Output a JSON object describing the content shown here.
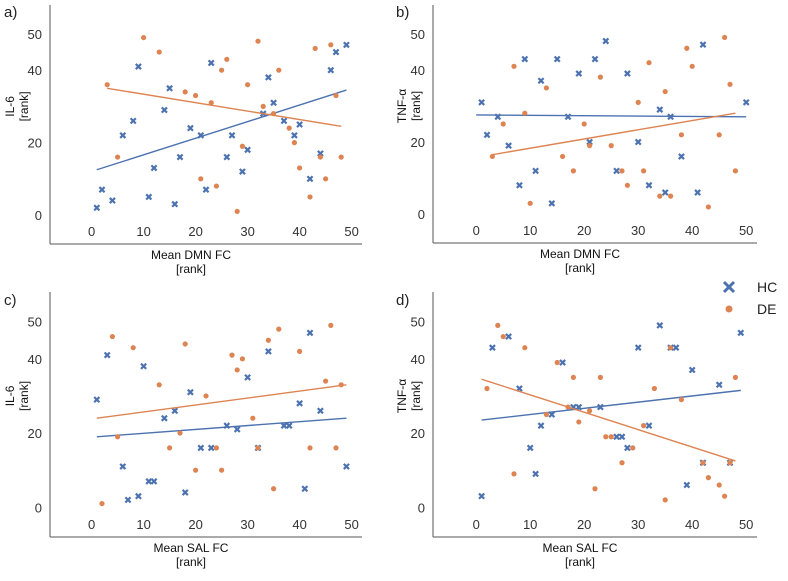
{
  "colors": {
    "HC": "#4c72b0",
    "DE": "#dd8452"
  },
  "legend": {
    "entries": [
      {
        "key": "HC",
        "label": "HC",
        "marker": "x"
      },
      {
        "key": "DE",
        "label": "DE",
        "marker": "o"
      }
    ]
  },
  "chart_data": [
    {
      "type": "scatter",
      "panel": "a)",
      "xlabel": [
        "Mean DMN FC",
        "[rank]"
      ],
      "ylabel": [
        "IL-6",
        "[rank]"
      ],
      "xlim": [
        -8,
        52
      ],
      "ylim": [
        -8,
        58
      ],
      "xticks": [
        0,
        10,
        20,
        30,
        40,
        50
      ],
      "yticks": [
        0,
        20,
        40,
        50
      ],
      "series": [
        {
          "name": "HC",
          "x": [
            1,
            2,
            4,
            6,
            8,
            9,
            11,
            12,
            14,
            15,
            16,
            17,
            19,
            21,
            22,
            23,
            26,
            27,
            29,
            30,
            33,
            34,
            35,
            37,
            39,
            40,
            42,
            44,
            46,
            47,
            49
          ],
          "y": [
            2,
            7,
            4,
            22,
            26,
            41,
            5,
            13,
            29,
            35,
            3,
            16,
            24,
            22,
            7,
            42,
            16,
            22,
            12,
            18,
            28,
            38,
            31,
            26,
            22,
            25,
            10,
            17,
            40,
            45,
            47
          ],
          "fit": {
            "x": [
              1,
              49
            ],
            "y": [
              12.5,
              34.5
            ]
          }
        },
        {
          "name": "DE",
          "x": [
            3,
            5,
            10,
            13,
            18,
            20,
            21,
            23,
            24,
            25,
            26,
            28,
            29,
            30,
            32,
            33,
            35,
            36,
            38,
            39,
            40,
            42,
            43,
            44,
            45,
            46,
            47,
            48
          ],
          "y": [
            36,
            16,
            49,
            45,
            34,
            33,
            10,
            31,
            8,
            40,
            43,
            1,
            19,
            36,
            48,
            30,
            28,
            40,
            24,
            20,
            13,
            5,
            46,
            16,
            10,
            47,
            33,
            16
          ],
          "fit": {
            "x": [
              3,
              48
            ],
            "y": [
              35,
              24.5
            ]
          }
        }
      ]
    },
    {
      "type": "scatter",
      "panel": "b)",
      "xlabel": [
        "Mean DMN FC",
        "[rank]"
      ],
      "ylabel": [
        "TNF-α",
        "[rank]"
      ],
      "xlim": [
        -8,
        52
      ],
      "ylim": [
        -8,
        58
      ],
      "xticks": [
        0,
        10,
        20,
        30,
        40,
        50
      ],
      "yticks": [
        0,
        20,
        40,
        50
      ],
      "series": [
        {
          "name": "HC",
          "x": [
            1,
            2,
            4,
            6,
            8,
            9,
            11,
            12,
            14,
            15,
            17,
            19,
            21,
            22,
            24,
            26,
            28,
            30,
            32,
            34,
            35,
            36,
            38,
            41,
            42,
            50
          ],
          "y": [
            31,
            22,
            27,
            19,
            8,
            43,
            12,
            37,
            3,
            43,
            27,
            39,
            20,
            43,
            48,
            12,
            39,
            20,
            8,
            29,
            6,
            27,
            16,
            6,
            47,
            31
          ],
          "fit": {
            "x": [
              0,
              50
            ],
            "y": [
              27.5,
              27
            ]
          }
        },
        {
          "name": "DE",
          "x": [
            3,
            5,
            7,
            9,
            10,
            13,
            16,
            18,
            20,
            21,
            23,
            25,
            27,
            28,
            30,
            31,
            32,
            34,
            35,
            36,
            38,
            39,
            40,
            43,
            45,
            46,
            47,
            48
          ],
          "y": [
            16,
            25,
            41,
            28,
            3,
            35,
            16,
            12,
            25,
            19,
            38,
            19,
            12,
            8,
            31,
            12,
            42,
            5,
            34,
            5,
            22,
            46,
            41,
            2,
            22,
            49,
            36,
            12
          ],
          "fit": {
            "x": [
              3,
              48
            ],
            "y": [
              16.5,
              28
            ]
          }
        }
      ]
    },
    {
      "type": "scatter",
      "panel": "c)",
      "xlabel": [
        "Mean SAL FC",
        "[rank]"
      ],
      "ylabel": [
        "IL-6",
        "[rank]"
      ],
      "xlim": [
        -8,
        52
      ],
      "ylim": [
        -8,
        58
      ],
      "xticks": [
        0,
        10,
        20,
        30,
        40,
        50
      ],
      "yticks": [
        0,
        20,
        40,
        50
      ],
      "series": [
        {
          "name": "HC",
          "x": [
            1,
            3,
            6,
            7,
            9,
            10,
            11,
            12,
            14,
            16,
            18,
            19,
            21,
            23,
            26,
            28,
            30,
            32,
            34,
            37,
            38,
            40,
            41,
            42,
            44,
            49
          ],
          "y": [
            29,
            41,
            11,
            2,
            3,
            38,
            7,
            7,
            24,
            26,
            4,
            31,
            16,
            16,
            22,
            21,
            35,
            16,
            42,
            22,
            22,
            28,
            5,
            47,
            26,
            11
          ],
          "fit": {
            "x": [
              1,
              49
            ],
            "y": [
              19,
              24
            ]
          }
        },
        {
          "name": "DE",
          "x": [
            2,
            4,
            5,
            8,
            13,
            15,
            17,
            18,
            20,
            22,
            24,
            25,
            27,
            28,
            29,
            31,
            32,
            34,
            35,
            36,
            40,
            42,
            45,
            46,
            47,
            48
          ],
          "y": [
            1,
            46,
            19,
            43,
            33,
            16,
            20,
            44,
            10,
            30,
            16,
            10,
            41,
            37,
            40,
            24,
            16,
            45,
            5,
            48,
            42,
            16,
            34,
            49,
            16,
            33
          ],
          "fit": {
            "x": [
              1,
              49
            ],
            "y": [
              24,
              33
            ]
          }
        }
      ]
    },
    {
      "type": "scatter",
      "panel": "d)",
      "xlabel": [
        "Mean SAL FC",
        "[rank]"
      ],
      "ylabel": [
        "TNF-α",
        "[rank]"
      ],
      "xlim": [
        -8,
        52
      ],
      "ylim": [
        -8,
        58
      ],
      "xticks": [
        0,
        10,
        20,
        30,
        40,
        50
      ],
      "yticks": [
        0,
        20,
        40,
        50
      ],
      "series": [
        {
          "name": "HC",
          "x": [
            1,
            3,
            6,
            8,
            10,
            11,
            12,
            14,
            16,
            18,
            19,
            23,
            26,
            27,
            28,
            30,
            32,
            34,
            36,
            37,
            39,
            40,
            42,
            45,
            47,
            49
          ],
          "y": [
            3,
            43,
            46,
            32,
            16,
            9,
            22,
            25,
            39,
            27,
            27,
            27,
            19,
            19,
            16,
            43,
            22,
            49,
            43,
            43,
            6,
            37,
            12,
            33,
            12,
            47
          ],
          "fit": {
            "x": [
              1,
              49
            ],
            "y": [
              23.5,
              31.5
            ]
          }
        },
        {
          "name": "DE",
          "x": [
            2,
            4,
            5,
            7,
            9,
            13,
            15,
            17,
            18,
            19,
            21,
            22,
            23,
            24,
            25,
            27,
            29,
            31,
            33,
            35,
            36,
            38,
            42,
            43,
            45,
            46,
            47,
            48
          ],
          "y": [
            32,
            49,
            46,
            9,
            43,
            25,
            39,
            27,
            35,
            23,
            26,
            5,
            35,
            19,
            19,
            12,
            16,
            22,
            32,
            2,
            43,
            29,
            12,
            8,
            6,
            3,
            12,
            35
          ],
          "fit": {
            "x": [
              1,
              48
            ],
            "y": [
              34.5,
              12.5
            ]
          }
        }
      ]
    }
  ]
}
